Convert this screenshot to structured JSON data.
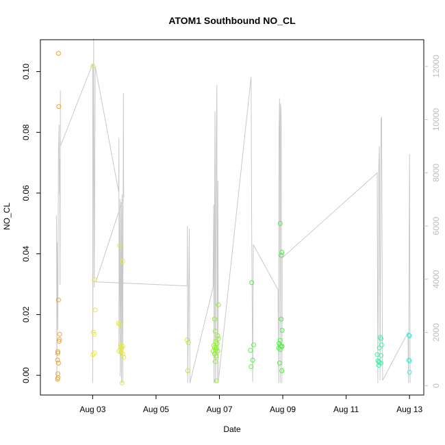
{
  "chart_data": {
    "type": "scatter",
    "title": "ATOM1 Southbound NO_CL",
    "xlabel": "Date",
    "ylabel": "NO_CL",
    "x_ticks": [
      {
        "label": "Aug 03",
        "day": 3.0
      },
      {
        "label": "Aug 05",
        "day": 5.0
      },
      {
        "label": "Aug 07",
        "day": 7.0
      },
      {
        "label": "Aug 09",
        "day": 9.0
      },
      {
        "label": "Aug 11",
        "day": 11.0
      },
      {
        "label": "Aug 13",
        "day": 13.0
      }
    ],
    "xlim_days": [
      1.35,
      13.45
    ],
    "y_ticks": [
      "0.00",
      "0.02",
      "0.04",
      "0.06",
      "0.08",
      "0.10"
    ],
    "ylim": [
      -0.0065,
      0.1105
    ],
    "y2_ticks": [
      "0",
      "2000",
      "4000",
      "6000",
      "8000",
      "10000",
      "12000"
    ],
    "y2lim": [
      -350,
      13000
    ],
    "colors": {
      "secondary_line": "#c8c8c8",
      "axis": "#000000",
      "right_axis": "#bdbdbd",
      "groups": [
        "#f0a030",
        "#e8e838",
        "#b8ee30",
        "#8ef028",
        "#4cf040",
        "#40f0a8",
        "#40f0d8"
      ]
    },
    "series": [
      {
        "group": 0,
        "points": [
          [
            1.92,
            0.106
          ],
          [
            1.93,
            0.0885
          ],
          [
            1.92,
            0.0248
          ],
          [
            1.96,
            0.0135
          ],
          [
            1.95,
            0.0118
          ],
          [
            1.94,
            0.0112
          ],
          [
            1.9,
            0.0078
          ],
          [
            1.9,
            0.0073
          ],
          [
            1.89,
            0.005
          ],
          [
            1.92,
            0.004
          ],
          [
            1.9,
            0.0005
          ],
          [
            1.91,
            -0.0008
          ],
          [
            1.89,
            -0.0013
          ]
        ]
      },
      {
        "group": 1,
        "points": [
          [
            3.01,
            0.1018
          ],
          [
            3.05,
            0.0315
          ],
          [
            3.08,
            0.0215
          ],
          [
            3.02,
            0.0142
          ],
          [
            3.05,
            0.0135
          ],
          [
            3.05,
            0.0073
          ],
          [
            3.01,
            0.0068
          ],
          [
            3.85,
            0.0428
          ],
          [
            3.95,
            0.0375
          ],
          [
            3.82,
            0.0172
          ],
          [
            3.85,
            0.0168
          ],
          [
            3.88,
            0.01
          ],
          [
            3.9,
            0.0095
          ],
          [
            3.95,
            0.0095
          ],
          [
            3.92,
            0.009
          ],
          [
            3.83,
            0.008
          ],
          [
            3.9,
            0.0075
          ],
          [
            3.95,
            0.007
          ],
          [
            3.98,
            0.006
          ],
          [
            3.93,
            -0.0025
          ]
        ]
      },
      {
        "group": 2,
        "points": [
          [
            5.98,
            0.0117
          ],
          [
            6.02,
            0.0107
          ],
          [
            6.0,
            0.0015
          ]
        ]
      },
      {
        "group": 3,
        "points": [
          [
            6.85,
            0.0185
          ],
          [
            6.87,
            0.0145
          ],
          [
            6.95,
            0.013
          ],
          [
            6.97,
            0.012
          ],
          [
            6.88,
            0.011
          ],
          [
            6.93,
            0.0105
          ],
          [
            6.82,
            0.0098
          ],
          [
            6.85,
            0.0092
          ],
          [
            6.91,
            0.0088
          ],
          [
            6.88,
            0.0083
          ],
          [
            6.8,
            0.008
          ],
          [
            6.95,
            0.008
          ],
          [
            6.85,
            0.007
          ],
          [
            6.9,
            0.0063
          ],
          [
            6.87,
            0.0045
          ],
          [
            6.97,
            0.0232
          ],
          [
            6.91,
            -0.0018
          ]
        ]
      },
      {
        "group": 4,
        "points": [
          [
            8.02,
            0.0305
          ],
          [
            8.08,
            0.01
          ],
          [
            7.98,
            0.0082
          ],
          [
            8.05,
            0.005
          ],
          [
            8.0,
            0.0028
          ],
          [
            8.92,
            0.05
          ],
          [
            8.97,
            0.0405
          ],
          [
            8.95,
            0.0395
          ],
          [
            8.95,
            0.0185
          ],
          [
            8.98,
            0.0148
          ],
          [
            8.92,
            0.0115
          ],
          [
            8.88,
            0.0105
          ],
          [
            8.92,
            0.0098
          ],
          [
            8.95,
            0.0095
          ],
          [
            8.98,
            0.0095
          ],
          [
            8.87,
            0.009
          ],
          [
            8.92,
            0.0085
          ],
          [
            8.9,
            0.004
          ],
          [
            8.97,
            0.0015
          ]
        ]
      },
      {
        "group": 5,
        "points": [
          [
            12.08,
            0.0125
          ],
          [
            12.1,
            0.012
          ],
          [
            12.12,
            0.01
          ],
          [
            12.05,
            0.009
          ],
          [
            11.98,
            0.0068
          ],
          [
            12.1,
            0.0065
          ],
          [
            12.0,
            0.0048
          ],
          [
            12.03,
            0.0045
          ],
          [
            12.05,
            0.0042
          ],
          [
            12.1,
            0.004
          ],
          [
            12.03,
            0.0033
          ]
        ]
      },
      {
        "group": 6,
        "points": [
          [
            12.98,
            0.0132
          ],
          [
            13.0,
            0.013
          ],
          [
            12.98,
            0.005
          ],
          [
            13.0,
            0.0047
          ],
          [
            13.0,
            0.001
          ]
        ]
      }
    ],
    "secondary_line": [
      [
        1.86,
        6400
      ],
      [
        1.87,
        150
      ],
      [
        1.88,
        5400
      ],
      [
        1.9,
        2100
      ],
      [
        1.92,
        8700
      ],
      [
        1.94,
        9800
      ],
      [
        1.95,
        7200
      ],
      [
        1.96,
        8500
      ],
      [
        1.97,
        3800
      ],
      [
        1.98,
        11100
      ],
      [
        1.98,
        9000
      ],
      [
        3.0,
        12100
      ],
      [
        3.0,
        100
      ],
      [
        3.03,
        13050
      ],
      [
        3.05,
        3700
      ],
      [
        3.08,
        12000
      ],
      [
        3.82,
        7300
      ],
      [
        3.83,
        9300
      ],
      [
        3.83,
        1200
      ],
      [
        3.86,
        7000
      ],
      [
        3.87,
        350
      ],
      [
        3.9,
        6900
      ],
      [
        3.91,
        100
      ],
      [
        3.93,
        7200
      ],
      [
        3.95,
        100
      ],
      [
        3.97,
        11000
      ],
      [
        3.98,
        7100
      ],
      [
        3.1,
        3900
      ],
      [
        5.98,
        3750
      ],
      [
        5.99,
        6000
      ],
      [
        6.0,
        100
      ],
      [
        6.05,
        5900
      ],
      [
        6.07,
        100
      ],
      [
        6.8,
        3700
      ],
      [
        6.82,
        6800
      ],
      [
        6.83,
        100
      ],
      [
        6.85,
        7400
      ],
      [
        6.86,
        10300
      ],
      [
        6.87,
        100
      ],
      [
        6.9,
        9000
      ],
      [
        6.92,
        11300
      ],
      [
        6.93,
        100
      ],
      [
        6.95,
        7700
      ],
      [
        6.97,
        200
      ],
      [
        8.0,
        11600
      ],
      [
        8.02,
        5600
      ],
      [
        8.05,
        150
      ],
      [
        8.07,
        5300
      ],
      [
        8.85,
        3600
      ],
      [
        8.87,
        100
      ],
      [
        8.88,
        9500
      ],
      [
        8.9,
        10800
      ],
      [
        8.92,
        100
      ],
      [
        8.93,
        10600
      ],
      [
        8.95,
        10200
      ],
      [
        8.97,
        100
      ],
      [
        8.98,
        4800
      ],
      [
        11.98,
        8000
      ],
      [
        12.0,
        100
      ],
      [
        12.03,
        8200
      ],
      [
        12.05,
        9000
      ],
      [
        12.07,
        200
      ],
      [
        12.1,
        10000
      ],
      [
        12.12,
        10100
      ],
      [
        12.15,
        200
      ],
      [
        12.95,
        2000
      ],
      [
        12.97,
        100
      ],
      [
        13.0,
        8700
      ],
      [
        13.02,
        100
      ]
    ]
  }
}
